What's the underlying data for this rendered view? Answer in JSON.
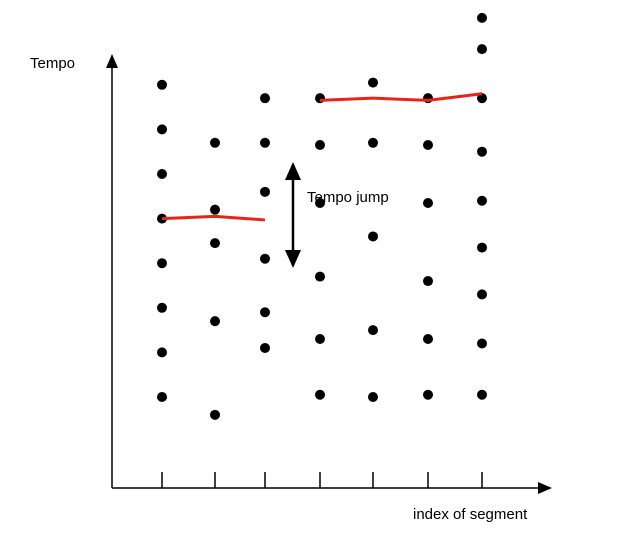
{
  "labels": {
    "y_axis": "Tempo",
    "x_axis": "index of segment",
    "annotation": "Tempo jump"
  },
  "colors": {
    "dots": "#000000",
    "path": "#e8231a",
    "axes": "#000000"
  },
  "segments": [
    {
      "index": 1,
      "tempo_candidates": [
        1,
        2,
        3,
        4,
        5,
        6,
        7,
        8
      ]
    },
    {
      "index": 2,
      "tempo_candidates": [
        0.6,
        2.7,
        4.45,
        5.2,
        6.7
      ]
    },
    {
      "index": 3,
      "tempo_candidates": [
        2.1,
        2.9,
        4.1,
        5.6,
        6.7,
        7.7
      ]
    },
    {
      "index": 4,
      "tempo_candidates": [
        1.05,
        2.3,
        3.7,
        5.35,
        6.65,
        7.7
      ]
    },
    {
      "index": 5,
      "tempo_candidates": [
        1,
        2.5,
        4.6,
        6.7,
        8.05
      ]
    },
    {
      "index": 6,
      "tempo_candidates": [
        1.05,
        2.3,
        3.6,
        5.35,
        6.65,
        7.7
      ]
    },
    {
      "index": 7,
      "tempo_candidates": [
        1.05,
        2.2,
        3.3,
        4.35,
        5.4,
        6.5,
        7.7,
        8.8,
        9.5
      ]
    }
  ],
  "selected_path": [
    {
      "segment": 1,
      "tempo": 5
    },
    {
      "segment": 2,
      "tempo": 5.05
    },
    {
      "segment": 3,
      "tempo": 4.97
    },
    {
      "segment": 4,
      "tempo": 7.65
    },
    {
      "segment": 5,
      "tempo": 7.7
    },
    {
      "segment": 6,
      "tempo": 7.65
    },
    {
      "segment": 7,
      "tempo": 7.8
    }
  ],
  "jump": {
    "from_tempo": 4.95,
    "to_tempo": 7.7
  }
}
